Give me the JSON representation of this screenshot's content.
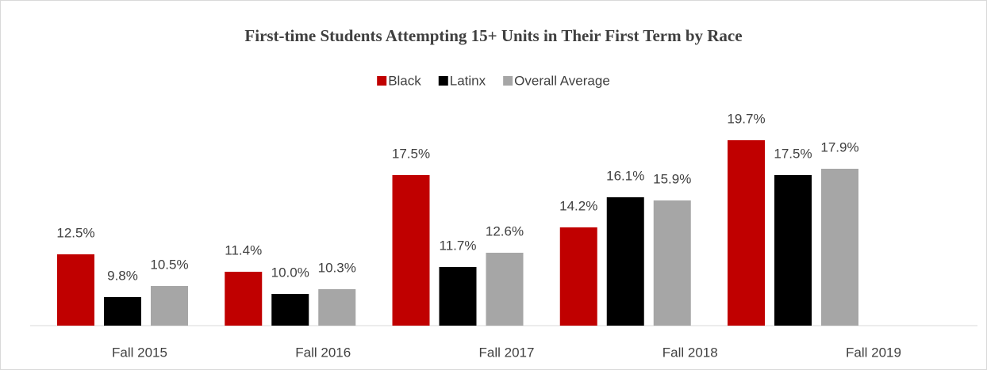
{
  "chart_data": {
    "type": "bar",
    "title": "First-time Students Attempting 15+ Units in Their First Term by Race",
    "categories": [
      "Fall 2015",
      "Fall 2016",
      "Fall 2017",
      "Fall 2018",
      "Fall 2019"
    ],
    "series": [
      {
        "name": "Black",
        "color": "#c00000",
        "values": [
          12.5,
          11.4,
          17.5,
          14.2,
          19.7
        ],
        "value_labels": [
          "12.5%",
          "11.4%",
          "17.5%",
          "14.2%",
          "19.7%"
        ]
      },
      {
        "name": "Latinx",
        "color": "#000000",
        "values": [
          9.8,
          10.0,
          11.7,
          16.1,
          17.5
        ],
        "value_labels": [
          "9.8%",
          "10.0%",
          "11.7%",
          "16.1%",
          "17.5%"
        ]
      },
      {
        "name": "Overall Average",
        "color": "#a6a6a6",
        "values": [
          10.5,
          10.3,
          12.6,
          15.9,
          17.9
        ],
        "value_labels": [
          "10.5%",
          "10.3%",
          "12.6%",
          "15.9%",
          "17.9%"
        ]
      }
    ],
    "ylim": [
      8,
      22
    ],
    "legend": "top"
  }
}
